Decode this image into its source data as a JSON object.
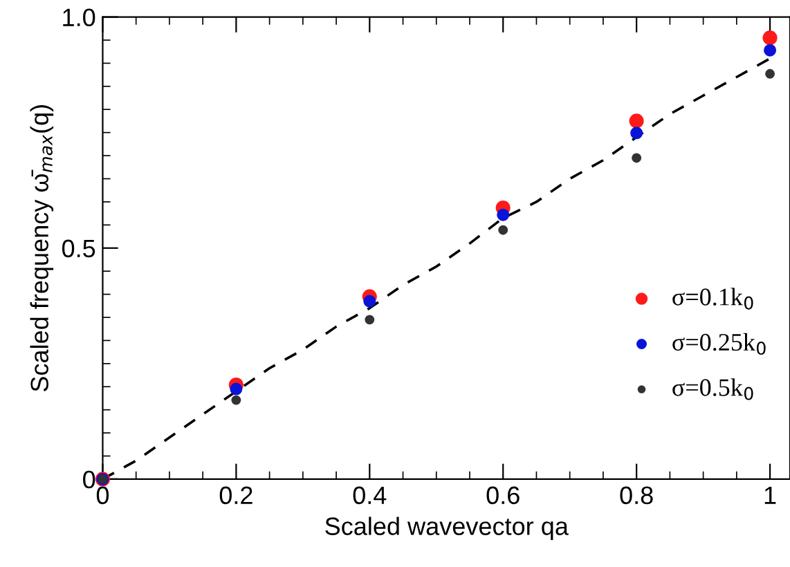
{
  "chart_data": {
    "type": "scatter",
    "xlabel": "Scaled wavevector qa",
    "ylabel": "Scaled frequency ω̄$_{max}$(q)",
    "x": [
      0,
      0.2,
      0.4,
      0.6,
      0.8,
      1
    ],
    "series": [
      {
        "name": "σ=0.1k$_{0}$",
        "color": "#ff1a1a",
        "marker": "circle",
        "values": [
          0,
          0.204,
          0.395,
          0.587,
          0.775,
          0.955
        ]
      },
      {
        "name": "σ=0.25k$_{0}$",
        "color": "#0a14d8",
        "marker": "circle",
        "values": [
          0,
          0.195,
          0.385,
          0.572,
          0.749,
          0.928
        ]
      },
      {
        "name": "σ=0.5k$_{0}$",
        "color": "#333333",
        "marker": "circle",
        "values": [
          0,
          0.171,
          0.345,
          0.539,
          0.695,
          0.877
        ]
      },
      {
        "type": "line",
        "line_style": "dashed",
        "color": "#000000",
        "x": [
          0,
          0.05,
          0.1,
          0.15,
          0.2,
          0.25,
          0.3,
          0.35,
          0.4,
          0.45,
          0.5,
          0.55,
          0.6,
          0.65,
          0.7,
          0.75,
          0.8,
          0.85,
          0.9,
          0.95,
          1.0
        ],
        "values": [
          0,
          0.04,
          0.09,
          0.14,
          0.19,
          0.24,
          0.28,
          0.33,
          0.37,
          0.42,
          0.46,
          0.51,
          0.565,
          0.6,
          0.65,
          0.69,
          0.74,
          0.79,
          0.83,
          0.87,
          0.91
        ]
      }
    ],
    "xlim": [
      0,
      1.03
    ],
    "ylim": [
      0,
      1.0
    ],
    "xticks": [
      0,
      0.2,
      0.4,
      0.6,
      0.8,
      1
    ],
    "yticks": [
      0,
      0.5,
      {
        "value": 1.0,
        "label": "1.0"
      }
    ],
    "grid": false,
    "legend": "bottom right"
  }
}
